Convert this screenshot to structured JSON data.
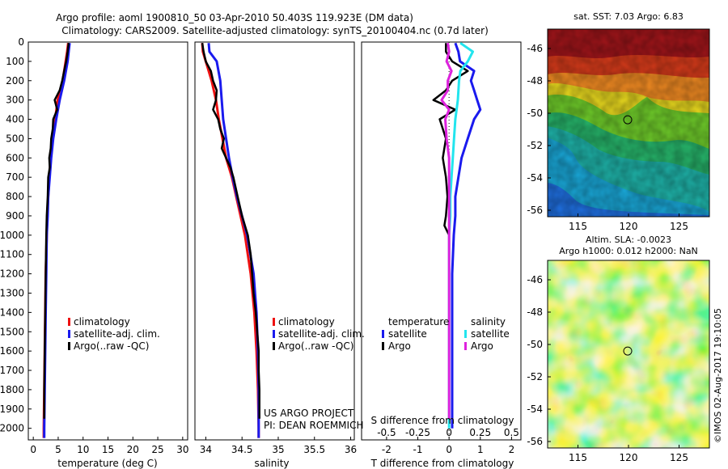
{
  "header": {
    "title_line1": "Argo profile: aoml 1900810_50 03-Apr-2010 50.403S 119.923E (DM data)",
    "title_line2": "Climatology: CARS2009. Satellite-adjusted climatology: synTS_20100404.nc (0.7d later)"
  },
  "colors": {
    "climatology": "#ee1111",
    "satellite": "#1a1aee",
    "argo": "#000000",
    "cyan": "#22e5ee",
    "magenta": "#dd22dd"
  },
  "footer": {
    "project": "US ARGO PROJECT",
    "pi": "PI: DEAN ROEMMICH",
    "stamp": "©IMOS 02-Aug-2017 19:10:05"
  },
  "chart_data": [
    {
      "type": "line",
      "id": "temperature",
      "xlabel": "temperature (deg C)",
      "ylabel": "",
      "xlim": [
        -1,
        31
      ],
      "ylim": [
        2060,
        0
      ],
      "xticks": [
        "0",
        "5",
        "10",
        "15",
        "20",
        "25",
        "30"
      ],
      "yticks": [
        "0",
        "100",
        "200",
        "300",
        "400",
        "500",
        "600",
        "700",
        "800",
        "900",
        "1000",
        "1100",
        "1200",
        "1300",
        "1400",
        "1500",
        "1600",
        "1700",
        "1800",
        "1900",
        "2000"
      ],
      "legend": [
        "climatology",
        "satellite-adj. clim.",
        "Argo(..raw -QC)"
      ],
      "series": [
        {
          "name": "climatology",
          "depth": [
            5,
            50,
            100,
            200,
            300,
            400,
            500,
            600,
            700,
            800,
            900,
            1000,
            1200,
            1400,
            1600,
            1800,
            2000,
            2050
          ],
          "values": [
            7.0,
            6.8,
            6.5,
            5.9,
            4.9,
            4.4,
            3.9,
            3.5,
            3.2,
            3.0,
            2.8,
            2.7,
            2.5,
            2.4,
            2.3,
            2.2,
            2.1,
            2.1
          ]
        },
        {
          "name": "satellite-adj. clim.",
          "depth": [
            5,
            50,
            100,
            200,
            300,
            400,
            500,
            600,
            700,
            800,
            900,
            1000,
            1200,
            1400,
            1600,
            1800,
            2000,
            2050
          ],
          "values": [
            7.3,
            7.1,
            6.9,
            6.2,
            5.3,
            4.6,
            4.0,
            3.6,
            3.3,
            3.0,
            2.9,
            2.7,
            2.6,
            2.5,
            2.4,
            2.3,
            2.2,
            2.2
          ]
        },
        {
          "name": "Argo(..raw -QC)",
          "depth": [
            5,
            50,
            100,
            150,
            200,
            250,
            300,
            350,
            400,
            450,
            500,
            550,
            600,
            650,
            700,
            800,
            900,
            1000,
            1200,
            1400,
            1600,
            1800,
            1950
          ],
          "values": [
            7.1,
            6.9,
            6.6,
            6.2,
            5.8,
            5.3,
            4.3,
            4.8,
            4.0,
            3.9,
            3.6,
            3.5,
            3.2,
            3.3,
            3.0,
            2.9,
            2.7,
            2.6,
            2.5,
            2.4,
            2.3,
            2.2,
            2.2
          ]
        }
      ]
    },
    {
      "type": "line",
      "id": "salinity",
      "xlabel": "salinity",
      "ylabel": "",
      "xlim": [
        33.85,
        36.05
      ],
      "ylim": [
        2060,
        0
      ],
      "xticks": [
        "34",
        "34.5",
        "35",
        "35.5",
        "36"
      ],
      "legend": [
        "climatology",
        "satellite-adj. clim.",
        "Argo(..raw -QC)"
      ],
      "series": [
        {
          "name": "climatology",
          "depth": [
            5,
            50,
            100,
            200,
            300,
            400,
            500,
            600,
            700,
            800,
            900,
            1000,
            1200,
            1400,
            1600,
            1800,
            2000,
            2050
          ],
          "values": [
            33.95,
            33.96,
            34.0,
            34.08,
            34.14,
            34.18,
            34.23,
            34.28,
            34.36,
            34.42,
            34.48,
            34.54,
            34.62,
            34.67,
            34.7,
            34.72,
            34.73,
            34.73
          ]
        },
        {
          "name": "satellite-adj. clim.",
          "depth": [
            5,
            50,
            100,
            200,
            300,
            400,
            500,
            600,
            700,
            800,
            900,
            1000,
            1200,
            1400,
            1600,
            1800,
            2000,
            2050
          ],
          "values": [
            34.04,
            34.05,
            34.15,
            34.2,
            34.22,
            34.24,
            34.28,
            34.32,
            34.37,
            34.43,
            34.5,
            34.57,
            34.66,
            34.7,
            34.72,
            34.73,
            34.73,
            34.73
          ]
        },
        {
          "name": "Argo(..raw -QC)",
          "depth": [
            5,
            50,
            100,
            150,
            200,
            250,
            300,
            350,
            400,
            450,
            500,
            550,
            600,
            650,
            700,
            800,
            900,
            1000,
            1100,
            1200,
            1300,
            1400,
            1500,
            1600,
            1700,
            1800,
            1950
          ],
          "values": [
            33.95,
            33.97,
            34.0,
            34.07,
            34.1,
            34.15,
            34.14,
            34.1,
            34.17,
            34.2,
            34.25,
            34.22,
            34.28,
            34.34,
            34.38,
            34.44,
            34.5,
            34.58,
            34.62,
            34.64,
            34.66,
            34.69,
            34.71,
            34.73,
            34.73,
            34.74,
            34.74
          ]
        }
      ]
    },
    {
      "type": "line",
      "id": "difference",
      "xlabel": "T difference from climatology",
      "xlabel2": "S difference from climatology",
      "ylabel": "",
      "xlim": [
        -2.8,
        2.3
      ],
      "ylim": [
        2060,
        0
      ],
      "xticks": [
        "-2",
        "-1",
        "0",
        "1",
        "2"
      ],
      "xticks2": [
        "-0.5",
        "-0.25",
        "0",
        "0.25",
        "0.5"
      ],
      "legend_temperature": {
        "title": "temperature",
        "items": [
          "satellite",
          "Argo"
        ]
      },
      "legend_salinity": {
        "title": "salinity",
        "items": [
          "satellite",
          "Argo"
        ]
      },
      "series": [
        {
          "name": "temperature satellite",
          "depth": [
            5,
            50,
            100,
            150,
            200,
            250,
            300,
            350,
            400,
            500,
            600,
            700,
            800,
            900,
            1000,
            1200,
            1400,
            1600,
            1800,
            2000
          ],
          "values": [
            0.2,
            0.3,
            0.35,
            0.8,
            0.7,
            0.8,
            0.9,
            1.0,
            0.8,
            0.6,
            0.4,
            0.3,
            0.2,
            0.2,
            0.15,
            0.1,
            0.1,
            0.1,
            0.1,
            0.1
          ]
        },
        {
          "name": "temperature Argo",
          "depth": [
            5,
            50,
            100,
            150,
            200,
            250,
            300,
            350,
            400,
            500,
            600,
            700,
            800,
            900,
            950,
            1000
          ],
          "values": [
            -0.1,
            -0.1,
            0.1,
            0.6,
            0.1,
            -0.1,
            -0.5,
            0.2,
            -0.3,
            -0.1,
            -0.2,
            -0.1,
            -0.05,
            -0.1,
            -0.15,
            0.0
          ]
        },
        {
          "name": "salinity satellite",
          "depth": [
            5,
            50,
            100,
            150,
            200,
            300,
            400,
            500,
            600,
            700,
            800,
            900,
            1000,
            1200,
            1400,
            1600,
            1800,
            2000
          ],
          "values": [
            0.09,
            0.19,
            0.15,
            0.09,
            0.08,
            0.07,
            0.05,
            0.04,
            0.03,
            0.02,
            0.01,
            0.01,
            0.0,
            0.0,
            0.0,
            0.0,
            0.0,
            0.0
          ]
        },
        {
          "name": "salinity Argo",
          "depth": [
            5,
            50,
            100,
            150,
            200,
            250,
            300,
            350,
            400,
            500,
            600,
            700,
            800,
            900,
            1000,
            1200,
            1400,
            1600,
            1800,
            1950
          ],
          "values": [
            -0.01,
            0.0,
            -0.02,
            0.02,
            -0.01,
            -0.01,
            -0.06,
            0.0,
            -0.03,
            -0.02,
            0.0,
            0.0,
            0.0,
            0.0,
            0.0,
            0.0,
            0.0,
            0.0,
            0.0,
            0.0
          ]
        }
      ]
    },
    {
      "type": "heatmap",
      "id": "sst-map",
      "title": "sat. SST: 7.03 Argo: 6.83",
      "xlim": [
        112,
        128
      ],
      "ylim": [
        -56.4,
        -44.8
      ],
      "xticks": [
        "115",
        "120",
        "125"
      ],
      "yticks": [
        "-46",
        "-48",
        "-50",
        "-52",
        "-54",
        "-56"
      ],
      "marker": {
        "lon": 119.923,
        "lat": -50.403
      }
    },
    {
      "type": "heatmap",
      "id": "sla-map",
      "title_line1": "Altim. SLA: -0.0023",
      "title_line2": "Argo h1000: 0.012 h2000: NaN",
      "xlim": [
        112,
        128
      ],
      "ylim": [
        -56.4,
        -44.8
      ],
      "xticks": [
        "115",
        "120",
        "125"
      ],
      "yticks": [
        "-46",
        "-48",
        "-50",
        "-52",
        "-54",
        "-56"
      ],
      "marker": {
        "lon": 119.923,
        "lat": -50.403
      }
    }
  ]
}
